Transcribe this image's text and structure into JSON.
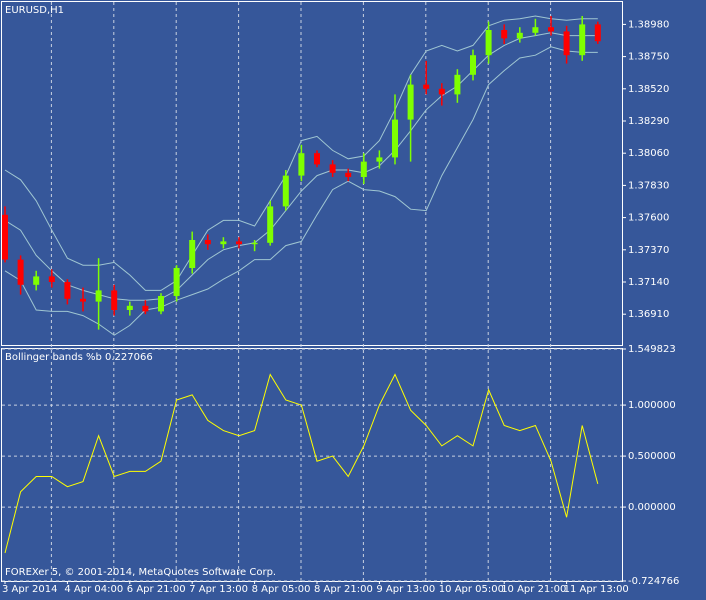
{
  "chart_data": [
    {
      "type": "candlestick",
      "title": "EURUSD,H1",
      "categories": [
        "3 Apr 2014",
        null,
        null,
        null,
        "4 Apr 04:00",
        null,
        null,
        null,
        "6 Apr 21:00",
        null,
        null,
        null,
        "7 Apr 13:00",
        null,
        null,
        null,
        "8 Apr 05:00",
        null,
        null,
        null,
        "8 Apr 21:00",
        null,
        null,
        null,
        "9 Apr 13:00",
        null,
        null,
        null,
        "10 Apr 05:00",
        null,
        null,
        null,
        "10 Apr 21:00",
        null,
        null,
        null,
        "11 Apr 13:00",
        null,
        null
      ],
      "open": [
        1.3762,
        1.373,
        1.3712,
        1.3718,
        1.3714,
        1.3702,
        1.37,
        1.3708,
        1.3694,
        1.3697,
        1.3693,
        1.3704,
        1.3724,
        1.3744,
        1.3741,
        1.3743,
        1.3741,
        1.3742,
        1.3768,
        1.379,
        1.3806,
        1.3798,
        1.3792,
        1.3789,
        1.38,
        1.3803,
        1.383,
        1.3855,
        1.3852,
        1.3848,
        1.3862,
        1.3876,
        1.3894,
        1.3888,
        1.3892,
        1.3896,
        1.3893,
        1.3876,
        1.3898
      ],
      "high": [
        1.3768,
        1.3733,
        1.3722,
        1.3723,
        1.3716,
        1.371,
        1.3731,
        1.3712,
        1.37,
        1.3701,
        1.3706,
        1.3726,
        1.375,
        1.3748,
        1.3746,
        1.3746,
        1.3744,
        1.3772,
        1.3794,
        1.3812,
        1.3808,
        1.3801,
        1.3795,
        1.3806,
        1.3808,
        1.3848,
        1.3862,
        1.3872,
        1.3856,
        1.3866,
        1.388,
        1.39,
        1.3898,
        1.3896,
        1.3902,
        1.3904,
        1.3897,
        1.3904,
        1.39
      ],
      "low": [
        1.3728,
        1.3705,
        1.3708,
        1.371,
        1.3698,
        1.3693,
        1.368,
        1.369,
        1.369,
        1.3691,
        1.3691,
        1.37,
        1.372,
        1.3737,
        1.3738,
        1.3738,
        1.3736,
        1.374,
        1.3765,
        1.3786,
        1.3796,
        1.3789,
        1.3786,
        1.3784,
        1.3795,
        1.3798,
        1.38,
        1.3848,
        1.384,
        1.3842,
        1.3858,
        1.387,
        1.3884,
        1.3885,
        1.389,
        1.389,
        1.387,
        1.3872,
        1.3884
      ],
      "close": [
        1.373,
        1.3712,
        1.3718,
        1.3714,
        1.3702,
        1.37,
        1.3708,
        1.3694,
        1.3697,
        1.3693,
        1.3704,
        1.3724,
        1.3744,
        1.3741,
        1.3743,
        1.3741,
        1.3742,
        1.3768,
        1.379,
        1.3806,
        1.3798,
        1.3792,
        1.3789,
        1.38,
        1.3803,
        1.383,
        1.3855,
        1.3852,
        1.3848,
        1.3862,
        1.3876,
        1.3894,
        1.3888,
        1.3892,
        1.3896,
        1.3893,
        1.3876,
        1.3898,
        1.3886
      ],
      "up_color": "#7fff00",
      "down_color": "#ff0000",
      "series": [
        {
          "color": "#9fc6d2",
          "values": [
            1.3794,
            1.3787,
            1.3772,
            1.3751,
            1.3731,
            1.3726,
            1.3726,
            1.3728,
            1.3719,
            1.3708,
            1.3708,
            1.3715,
            1.3733,
            1.3751,
            1.3758,
            1.3758,
            1.3754,
            1.3772,
            1.379,
            1.3815,
            1.3818,
            1.3808,
            1.3802,
            1.3804,
            1.3815,
            1.3837,
            1.3862,
            1.3879,
            1.3883,
            1.3879,
            1.3883,
            1.3897,
            1.3901,
            1.3902,
            1.3904,
            1.3902,
            1.3901,
            1.3902,
            1.3902
          ]
        },
        {
          "color": "#9fc6d2",
          "values": [
            1.3758,
            1.3751,
            1.3733,
            1.3722,
            1.3712,
            1.3708,
            1.3705,
            1.3702,
            1.3701,
            1.3701,
            1.3702,
            1.3708,
            1.3719,
            1.373,
            1.3737,
            1.374,
            1.3742,
            1.3751,
            1.3765,
            1.3779,
            1.379,
            1.3794,
            1.3794,
            1.3792,
            1.3797,
            1.3808,
            1.3822,
            1.3837,
            1.3847,
            1.3854,
            1.3865,
            1.3876,
            1.3883,
            1.3888,
            1.389,
            1.3892,
            1.389,
            1.389,
            1.389
          ]
        },
        {
          "color": "#9fc6d2",
          "values": [
            1.3722,
            1.3715,
            1.3694,
            1.3693,
            1.3693,
            1.369,
            1.3684,
            1.3676,
            1.3683,
            1.3694,
            1.3696,
            1.3701,
            1.3705,
            1.3709,
            1.3716,
            1.3722,
            1.373,
            1.373,
            1.374,
            1.3743,
            1.3762,
            1.378,
            1.3786,
            1.378,
            1.3779,
            1.3775,
            1.3766,
            1.3765,
            1.379,
            1.381,
            1.383,
            1.3855,
            1.3865,
            1.3874,
            1.3876,
            1.3882,
            1.3879,
            1.3878,
            1.3878
          ]
        }
      ],
      "ylim": [
        1.3669,
        1.3914
      ],
      "yticks": [
        {
          "value": 1.3898,
          "label": "1.38980"
        },
        {
          "value": 1.3875,
          "label": "1.38750"
        },
        {
          "value": 1.3852,
          "label": "1.38520"
        },
        {
          "value": 1.3829,
          "label": "1.38290"
        },
        {
          "value": 1.3806,
          "label": "1.38060"
        },
        {
          "value": 1.3783,
          "label": "1.37830"
        },
        {
          "value": 1.376,
          "label": "1.37600"
        },
        {
          "value": 1.3737,
          "label": "1.37370"
        },
        {
          "value": 1.3714,
          "label": "1.37140"
        },
        {
          "value": 1.3691,
          "label": "1.36910"
        }
      ],
      "grid": true
    },
    {
      "type": "line",
      "title": "Bollinger bands %b 0.227066",
      "annotation": "FOREXer 5, © 2001-2014, MetaQuotes Software Corp.",
      "color": "#ffff00",
      "values": [
        -0.45,
        0.15,
        0.3,
        0.3,
        0.2,
        0.25,
        0.7,
        0.3,
        0.35,
        0.35,
        0.45,
        1.05,
        1.1,
        0.85,
        0.75,
        0.7,
        0.75,
        1.3,
        1.05,
        1.0,
        0.45,
        0.5,
        0.3,
        0.6,
        1.0,
        1.3,
        0.95,
        0.8,
        0.6,
        0.7,
        0.6,
        1.15,
        0.8,
        0.75,
        0.8,
        0.45,
        -0.1,
        0.8,
        0.227066
      ],
      "ylim": [
        -0.724766,
        1.549823
      ],
      "yticks": [
        {
          "value": 1.549823,
          "label": "1.549823"
        },
        {
          "value": 1,
          "label": "1.000000"
        },
        {
          "value": 0.5,
          "label": "0.500000"
        },
        {
          "value": 0,
          "label": "0.000000"
        },
        {
          "value": -0.724766,
          "label": "-0.724766"
        }
      ],
      "grid": true
    }
  ]
}
